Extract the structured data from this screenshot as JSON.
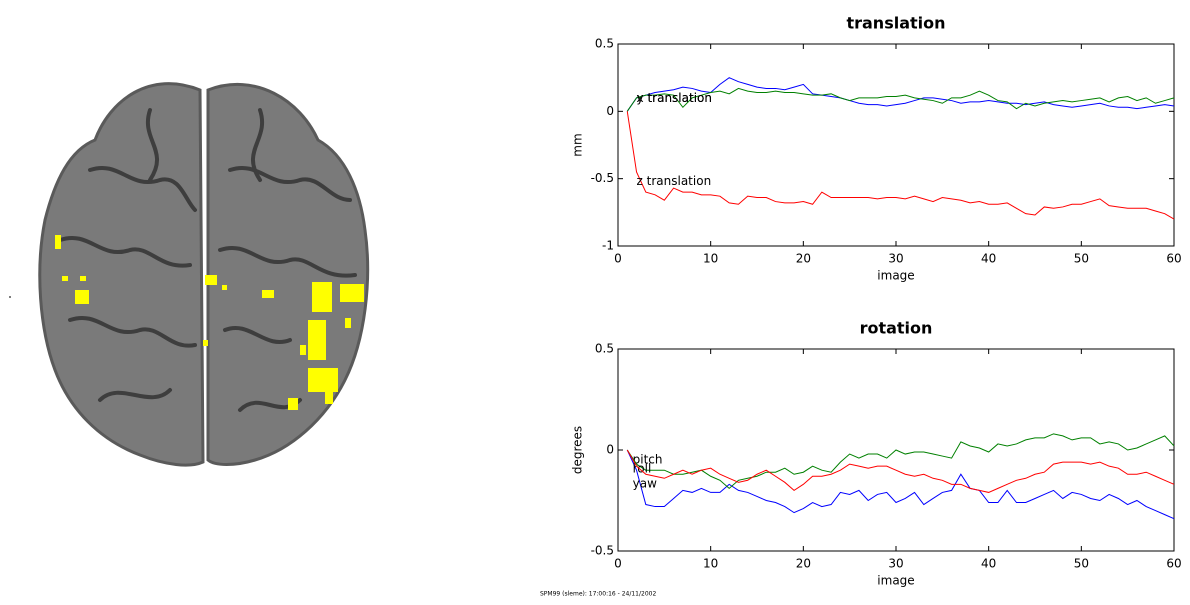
{
  "chart_data": [
    {
      "type": "line",
      "title": "translation",
      "x_label": "image",
      "y_label": "mm",
      "x": [
        1,
        2,
        3,
        4,
        5,
        6,
        7,
        8,
        9,
        10,
        11,
        12,
        13,
        14,
        15,
        16,
        17,
        18,
        19,
        20,
        21,
        22,
        23,
        24,
        25,
        26,
        27,
        28,
        29,
        30,
        31,
        32,
        33,
        34,
        35,
        36,
        37,
        38,
        39,
        40,
        41,
        42,
        43,
        44,
        45,
        46,
        47,
        48,
        49,
        50,
        51,
        52,
        53,
        54,
        55,
        56,
        57,
        58,
        59,
        60
      ],
      "xlim": [
        0,
        60
      ],
      "xticks": [
        0,
        10,
        20,
        30,
        40,
        50,
        60
      ],
      "ylim": [
        -1,
        0.5
      ],
      "yticks": [
        -1,
        -0.5,
        0,
        0.5
      ],
      "series": [
        {
          "name": "x translation",
          "color": "#0000ff",
          "values": [
            0,
            0.1,
            0.12,
            0.14,
            0.15,
            0.16,
            0.18,
            0.17,
            0.15,
            0.14,
            0.2,
            0.25,
            0.22,
            0.2,
            0.18,
            0.17,
            0.17,
            0.16,
            0.18,
            0.2,
            0.13,
            0.12,
            0.11,
            0.1,
            0.08,
            0.06,
            0.05,
            0.05,
            0.04,
            0.05,
            0.06,
            0.08,
            0.1,
            0.1,
            0.09,
            0.08,
            0.06,
            0.07,
            0.07,
            0.08,
            0.07,
            0.06,
            0.06,
            0.05,
            0.06,
            0.07,
            0.05,
            0.04,
            0.03,
            0.04,
            0.05,
            0.06,
            0.04,
            0.03,
            0.03,
            0.02,
            0.03,
            0.04,
            0.05,
            0.04
          ]
        },
        {
          "name": "y translation",
          "color": "#008000",
          "values": [
            0,
            0.1,
            0.12,
            0.12,
            0.13,
            0.12,
            0.03,
            0.1,
            0.12,
            0.14,
            0.15,
            0.13,
            0.17,
            0.15,
            0.14,
            0.14,
            0.15,
            0.14,
            0.14,
            0.13,
            0.12,
            0.12,
            0.13,
            0.1,
            0.08,
            0.1,
            0.1,
            0.1,
            0.11,
            0.11,
            0.12,
            0.1,
            0.09,
            0.08,
            0.06,
            0.1,
            0.1,
            0.12,
            0.15,
            0.12,
            0.08,
            0.07,
            0.02,
            0.06,
            0.04,
            0.06,
            0.07,
            0.08,
            0.07,
            0.08,
            0.09,
            0.1,
            0.07,
            0.1,
            0.11,
            0.08,
            0.1,
            0.06,
            0.08,
            0.1
          ]
        },
        {
          "name": "z translation",
          "color": "#ff0000",
          "values": [
            0,
            -0.45,
            -0.6,
            -0.62,
            -0.66,
            -0.57,
            -0.6,
            -0.6,
            -0.62,
            -0.62,
            -0.63,
            -0.68,
            -0.69,
            -0.63,
            -0.64,
            -0.64,
            -0.67,
            -0.68,
            -0.68,
            -0.67,
            -0.69,
            -0.6,
            -0.64,
            -0.64,
            -0.64,
            -0.64,
            -0.64,
            -0.65,
            -0.64,
            -0.64,
            -0.65,
            -0.63,
            -0.65,
            -0.67,
            -0.64,
            -0.65,
            -0.66,
            -0.68,
            -0.67,
            -0.69,
            -0.69,
            -0.68,
            -0.72,
            -0.76,
            -0.77,
            -0.71,
            -0.72,
            -0.71,
            -0.69,
            -0.69,
            -0.67,
            -0.65,
            -0.7,
            -0.71,
            -0.72,
            -0.72,
            -0.72,
            -0.74,
            -0.76,
            -0.8
          ]
        }
      ]
    },
    {
      "type": "line",
      "title": "rotation",
      "x_label": "image",
      "y_label": "degrees",
      "x": [
        1,
        2,
        3,
        4,
        5,
        6,
        7,
        8,
        9,
        10,
        11,
        12,
        13,
        14,
        15,
        16,
        17,
        18,
        19,
        20,
        21,
        22,
        23,
        24,
        25,
        26,
        27,
        28,
        29,
        30,
        31,
        32,
        33,
        34,
        35,
        36,
        37,
        38,
        39,
        40,
        41,
        42,
        43,
        44,
        45,
        46,
        47,
        48,
        49,
        50,
        51,
        52,
        53,
        54,
        55,
        56,
        57,
        58,
        59,
        60
      ],
      "xlim": [
        0,
        60
      ],
      "xticks": [
        0,
        10,
        20,
        30,
        40,
        50,
        60
      ],
      "ylim": [
        -0.5,
        0.5
      ],
      "yticks": [
        -0.5,
        0,
        0.5
      ],
      "series": [
        {
          "name": "pitch",
          "color": "#0000ff",
          "values": [
            0,
            -0.1,
            -0.27,
            -0.28,
            -0.28,
            -0.24,
            -0.2,
            -0.21,
            -0.19,
            -0.21,
            -0.21,
            -0.17,
            -0.2,
            -0.21,
            -0.23,
            -0.25,
            -0.26,
            -0.28,
            -0.31,
            -0.29,
            -0.26,
            -0.28,
            -0.27,
            -0.21,
            -0.22,
            -0.2,
            -0.25,
            -0.22,
            -0.21,
            -0.26,
            -0.24,
            -0.21,
            -0.27,
            -0.24,
            -0.21,
            -0.2,
            -0.12,
            -0.19,
            -0.2,
            -0.26,
            -0.26,
            -0.2,
            -0.26,
            -0.26,
            -0.24,
            -0.22,
            -0.2,
            -0.24,
            -0.21,
            -0.22,
            -0.24,
            -0.25,
            -0.22,
            -0.24,
            -0.27,
            -0.25,
            -0.28,
            -0.3,
            -0.32,
            -0.34
          ]
        },
        {
          "name": "roll",
          "color": "#008000",
          "values": [
            0,
            -0.07,
            -0.1,
            -0.1,
            -0.1,
            -0.12,
            -0.12,
            -0.11,
            -0.1,
            -0.13,
            -0.15,
            -0.19,
            -0.15,
            -0.14,
            -0.13,
            -0.11,
            -0.11,
            -0.09,
            -0.12,
            -0.11,
            -0.08,
            -0.1,
            -0.11,
            -0.06,
            -0.02,
            -0.04,
            -0.02,
            -0.02,
            -0.04,
            0,
            -0.02,
            -0.01,
            -0.01,
            -0.02,
            -0.03,
            -0.04,
            0.04,
            0.02,
            0.01,
            -0.01,
            0.03,
            0.02,
            0.03,
            0.05,
            0.06,
            0.06,
            0.08,
            0.07,
            0.05,
            0.06,
            0.06,
            0.03,
            0.04,
            0.03,
            0,
            0.01,
            0.03,
            0.05,
            0.07,
            0.02
          ]
        },
        {
          "name": "yaw",
          "color": "#ff0000",
          "values": [
            0,
            -0.08,
            -0.12,
            -0.13,
            -0.14,
            -0.12,
            -0.1,
            -0.12,
            -0.1,
            -0.09,
            -0.12,
            -0.14,
            -0.16,
            -0.15,
            -0.12,
            -0.1,
            -0.13,
            -0.16,
            -0.2,
            -0.17,
            -0.13,
            -0.13,
            -0.12,
            -0.1,
            -0.07,
            -0.08,
            -0.09,
            -0.08,
            -0.08,
            -0.1,
            -0.12,
            -0.13,
            -0.12,
            -0.14,
            -0.15,
            -0.17,
            -0.17,
            -0.19,
            -0.2,
            -0.21,
            -0.19,
            -0.17,
            -0.15,
            -0.14,
            -0.12,
            -0.11,
            -0.07,
            -0.06,
            -0.06,
            -0.06,
            -0.07,
            -0.06,
            -0.08,
            -0.09,
            -0.12,
            -0.12,
            -0.11,
            -0.13,
            -0.15,
            -0.17
          ]
        }
      ]
    }
  ],
  "footer": "SPM99 (sleme): 17:00:16 - 24/11/2002"
}
